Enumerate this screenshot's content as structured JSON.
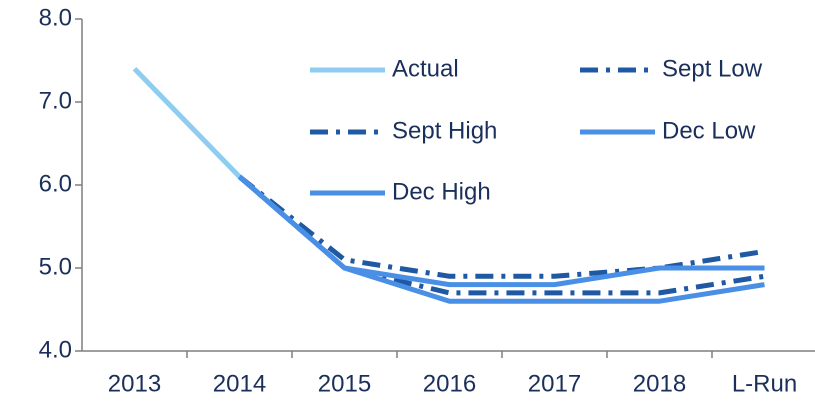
{
  "chart_data": {
    "type": "line",
    "categories": [
      "2013",
      "2014",
      "2015",
      "2016",
      "2017",
      "2018",
      "L-Run"
    ],
    "series": [
      {
        "name": "Actual",
        "color": "#8fcdf0",
        "style": "solid",
        "values": [
          7.4,
          6.1,
          null,
          null,
          null,
          null,
          null
        ]
      },
      {
        "name": "Sept Low",
        "color": "#1f58a3",
        "style": "dashdot",
        "values": [
          null,
          6.1,
          5.0,
          4.7,
          4.7,
          4.7,
          4.9
        ]
      },
      {
        "name": "Sept High",
        "color": "#1f58a3",
        "style": "dashdot",
        "values": [
          null,
          6.1,
          5.1,
          4.9,
          4.9,
          5.0,
          5.2
        ]
      },
      {
        "name": "Dec Low",
        "color": "#4a8fe6",
        "style": "solid",
        "values": [
          null,
          6.1,
          5.0,
          4.6,
          4.6,
          4.6,
          4.8
        ]
      },
      {
        "name": "Dec High",
        "color": "#4a8fe6",
        "style": "solid",
        "values": [
          null,
          6.1,
          5.0,
          4.8,
          4.8,
          5.0,
          5.0
        ]
      }
    ],
    "ylim": [
      4,
      8
    ],
    "yticks": [
      {
        "value": 4,
        "label": "4.0"
      },
      {
        "value": 5,
        "label": "5.0"
      },
      {
        "value": 6,
        "label": "6.0"
      },
      {
        "value": 7,
        "label": "7.0"
      },
      {
        "value": 8,
        "label": "8.0"
      }
    ],
    "grid": false
  }
}
